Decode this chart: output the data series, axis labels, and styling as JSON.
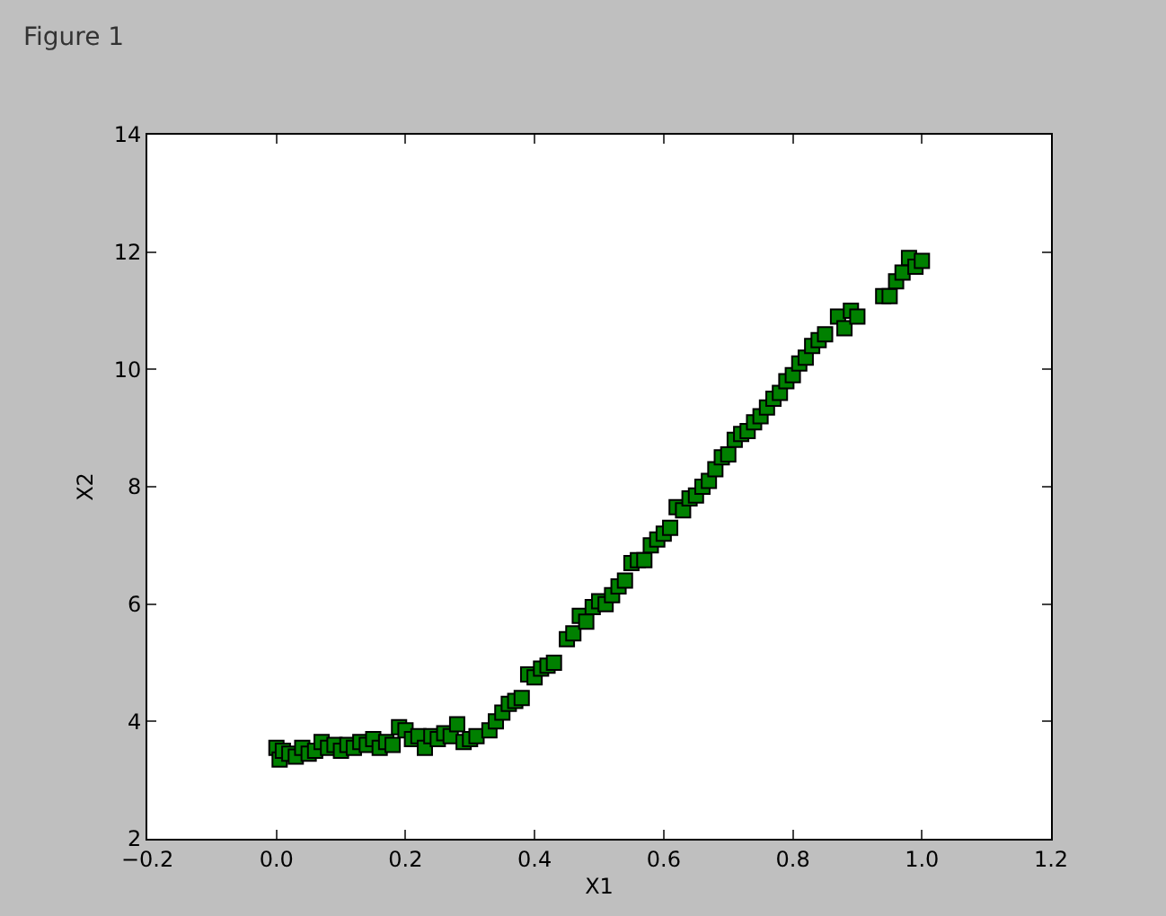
{
  "chart_data": {
    "type": "scatter",
    "title": "Figure 1",
    "xlabel": "X1",
    "ylabel": "X2",
    "marker": "square",
    "legend": false,
    "xlim": [
      -0.2,
      1.2
    ],
    "xticks": [
      {
        "value": -0.2,
        "label": "−0.2"
      },
      {
        "value": 0,
        "label": "0.0"
      },
      0.2,
      0.4,
      0.6,
      0.8,
      {
        "value": 1,
        "label": "1.0"
      },
      1.2
    ],
    "ylim": [
      2,
      14
    ],
    "yticks": [
      2,
      4,
      6,
      8,
      10,
      12,
      14
    ],
    "series": [
      {
        "color": "#008000",
        "x": [
          0.0,
          0.005,
          0.01,
          0.02,
          0.03,
          0.04,
          0.05,
          0.06,
          0.07,
          0.08,
          0.09,
          0.1,
          0.11,
          0.12,
          0.13,
          0.14,
          0.15,
          0.16,
          0.17,
          0.18,
          0.19,
          0.2,
          0.21,
          0.22,
          0.23,
          0.24,
          0.25,
          0.26,
          0.27,
          0.28,
          0.29,
          0.3,
          0.31,
          0.33,
          0.34,
          0.35,
          0.36,
          0.37,
          0.38,
          0.39,
          0.4,
          0.41,
          0.42,
          0.43,
          0.45,
          0.46,
          0.47,
          0.48,
          0.49,
          0.5,
          0.51,
          0.52,
          0.53,
          0.54,
          0.55,
          0.56,
          0.57,
          0.58,
          0.59,
          0.6,
          0.61,
          0.62,
          0.63,
          0.64,
          0.65,
          0.66,
          0.67,
          0.68,
          0.69,
          0.7,
          0.71,
          0.72,
          0.73,
          0.74,
          0.75,
          0.76,
          0.77,
          0.78,
          0.79,
          0.8,
          0.81,
          0.82,
          0.83,
          0.84,
          0.85,
          0.87,
          0.88,
          0.89,
          0.9,
          0.94,
          0.95,
          0.96,
          0.97,
          0.98,
          0.99,
          1.0
        ],
        "values": [
          3.55,
          3.35,
          3.5,
          3.45,
          3.4,
          3.55,
          3.45,
          3.5,
          3.65,
          3.55,
          3.6,
          3.5,
          3.6,
          3.55,
          3.65,
          3.6,
          3.7,
          3.55,
          3.65,
          3.6,
          3.9,
          3.85,
          3.7,
          3.75,
          3.55,
          3.75,
          3.7,
          3.8,
          3.75,
          3.95,
          3.65,
          3.7,
          3.75,
          3.85,
          4.0,
          4.15,
          4.3,
          4.35,
          4.4,
          4.8,
          4.75,
          4.9,
          4.95,
          5.0,
          5.4,
          5.5,
          5.8,
          5.7,
          5.95,
          6.05,
          6.0,
          6.15,
          6.3,
          6.4,
          6.7,
          6.75,
          6.75,
          7.0,
          7.1,
          7.2,
          7.3,
          7.65,
          7.6,
          7.8,
          7.85,
          8.0,
          8.1,
          8.3,
          8.5,
          8.55,
          8.8,
          8.9,
          8.95,
          9.1,
          9.2,
          9.35,
          9.5,
          9.6,
          9.8,
          9.9,
          10.1,
          10.2,
          10.4,
          10.5,
          10.6,
          10.9,
          10.7,
          11.0,
          10.9,
          11.25,
          11.25,
          11.5,
          11.65,
          11.9,
          11.75,
          11.85
        ]
      }
    ]
  }
}
